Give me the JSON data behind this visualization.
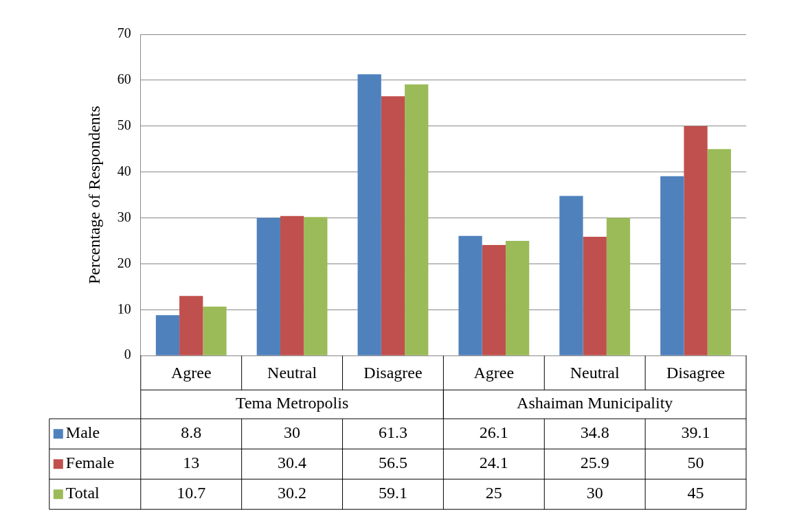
{
  "chart_data": {
    "type": "bar",
    "ylabel": "Percentage of Respondents",
    "categories": [
      "Agree",
      "Neutral",
      "Disagree",
      "Agree",
      "Neutral",
      "Disagree"
    ],
    "annotations": [
      "Tema Metropolis",
      "Ashaiman Municipality"
    ],
    "series": [
      {
        "name": "Male",
        "color": "#4f81bd",
        "values": [
          8.8,
          30,
          61.3,
          26.1,
          34.8,
          39.1
        ]
      },
      {
        "name": "Female",
        "color": "#c0504d",
        "values": [
          13,
          30.4,
          56.5,
          24.1,
          25.9,
          50
        ]
      },
      {
        "name": "Total",
        "color": "#9bbb59",
        "values": [
          10.7,
          30.2,
          59.1,
          25,
          30,
          45
        ]
      }
    ],
    "ylim": [
      0,
      70
    ],
    "yticks": [
      0,
      10,
      20,
      30,
      40,
      50,
      60,
      70
    ],
    "grid": "y",
    "legend": "bottom",
    "data_labels": true
  }
}
